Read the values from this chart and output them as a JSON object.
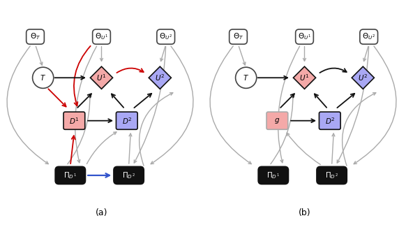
{
  "fig_width": 5.82,
  "fig_height": 3.42,
  "bg_color": "#ffffff",
  "pink_fill": "#f4a9a8",
  "blue_fill": "#a9a8f4",
  "black_fill": "#111111",
  "white_fill": "#ffffff",
  "gray_color": "#aaaaaa",
  "red_color": "#cc0000",
  "blue_color": "#3355cc",
  "black_color": "#111111",
  "dark_gray": "#444444",
  "caption_a": "(a)",
  "caption_b": "(b)"
}
